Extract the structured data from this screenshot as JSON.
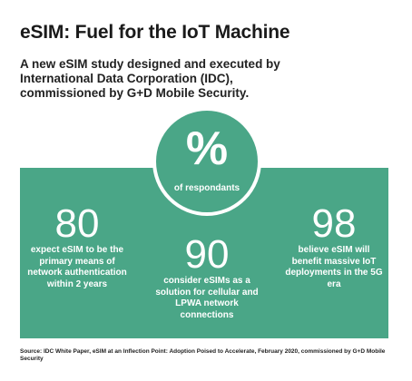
{
  "title": "eSIM: Fuel for the IoT Machine",
  "subtitle": "A new eSIM study designed and executed by International Data Corporation (IDC), commissioned by G+D Mobile Security.",
  "badge": {
    "symbol": "%",
    "label": "of respondants"
  },
  "stats": [
    {
      "value": "80",
      "text": "expect eSIM to be the primary means of network authentication within 2 years"
    },
    {
      "value": "90",
      "text": "consider eSIMs as a solution for cellular and LPWA network connections"
    },
    {
      "value": "98",
      "text": "believe eSIM will benefit massive IoT deployments in the 5G era"
    }
  ],
  "source": "Source: IDC White Paper, eSIM at an Inflection Point: Adoption Poised to Accelerate, February 2020, commissioned by G+D Mobile Security",
  "colors": {
    "accent": "#4aa687"
  }
}
